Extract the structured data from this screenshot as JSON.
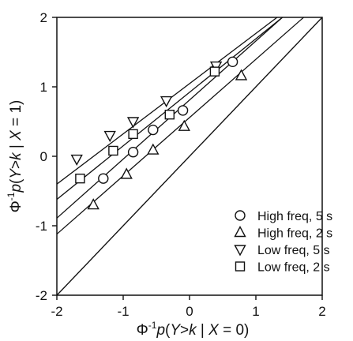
{
  "chart_data": {
    "type": "scatter",
    "x_axis": {
      "min": -2,
      "max": 2,
      "ticks": [
        -2,
        -1,
        0,
        1,
        2
      ],
      "tick_labels": [
        "-2",
        "-1",
        "0",
        "1",
        "2"
      ],
      "label_parts": {
        "phi": "Φ",
        "sup": "-1",
        "p": "p",
        "open": "(",
        "Y": "Y",
        "rel": ">",
        "k": "k",
        "bar": " | ",
        "X": "X",
        "eq": " = 0)"
      }
    },
    "y_axis": {
      "min": -2,
      "max": 2,
      "ticks": [
        -2,
        -1,
        0,
        1,
        2
      ],
      "tick_labels": [
        "-2",
        "-1",
        "0",
        "1",
        "2"
      ],
      "label_parts": {
        "phi": "Φ",
        "sup": "-1",
        "p": "p",
        "open": "(",
        "Y": "Y",
        "rel": ">",
        "k": "k",
        "bar": " | ",
        "X": "X",
        "eq": " = 1)"
      }
    },
    "grid": false,
    "legend_position": "bottom-right",
    "identity_line": {
      "from": [
        -2,
        -2
      ],
      "to": [
        2,
        2
      ]
    },
    "series": [
      {
        "name": "High freq, 5 s",
        "marker": "circle",
        "points": [
          [
            -1.3,
            -0.32
          ],
          [
            -0.85,
            0.06
          ],
          [
            -0.55,
            0.38
          ],
          [
            -0.1,
            0.66
          ],
          [
            0.65,
            1.36
          ]
        ],
        "fit": {
          "from": [
            -2.0,
            -0.89
          ],
          "to": [
            1.4,
            2.0
          ]
        }
      },
      {
        "name": "High freq, 2 s",
        "marker": "triangle-up",
        "points": [
          [
            -1.45,
            -0.7
          ],
          [
            -0.95,
            -0.26
          ],
          [
            -0.55,
            0.09
          ],
          [
            -0.08,
            0.43
          ],
          [
            0.78,
            1.16
          ]
        ],
        "fit": {
          "from": [
            -2.0,
            -1.12
          ],
          "to": [
            1.72,
            2.0
          ]
        }
      },
      {
        "name": "Low freq, 5 s",
        "marker": "triangle-down",
        "points": [
          [
            -1.7,
            -0.04
          ],
          [
            -1.2,
            0.3
          ],
          [
            -0.85,
            0.5
          ],
          [
            -0.35,
            0.8
          ],
          [
            0.4,
            1.3
          ]
        ],
        "fit": {
          "from": [
            -2.0,
            -0.4
          ],
          "to": [
            1.32,
            2.0
          ]
        }
      },
      {
        "name": "Low freq, 2 s",
        "marker": "square",
        "points": [
          [
            -1.65,
            -0.32
          ],
          [
            -1.15,
            0.08
          ],
          [
            -0.85,
            0.32
          ],
          [
            -0.3,
            0.6
          ],
          [
            0.38,
            1.22
          ]
        ],
        "fit": {
          "from": [
            -2.0,
            -0.62
          ],
          "to": [
            1.4,
            2.0
          ]
        }
      }
    ]
  }
}
